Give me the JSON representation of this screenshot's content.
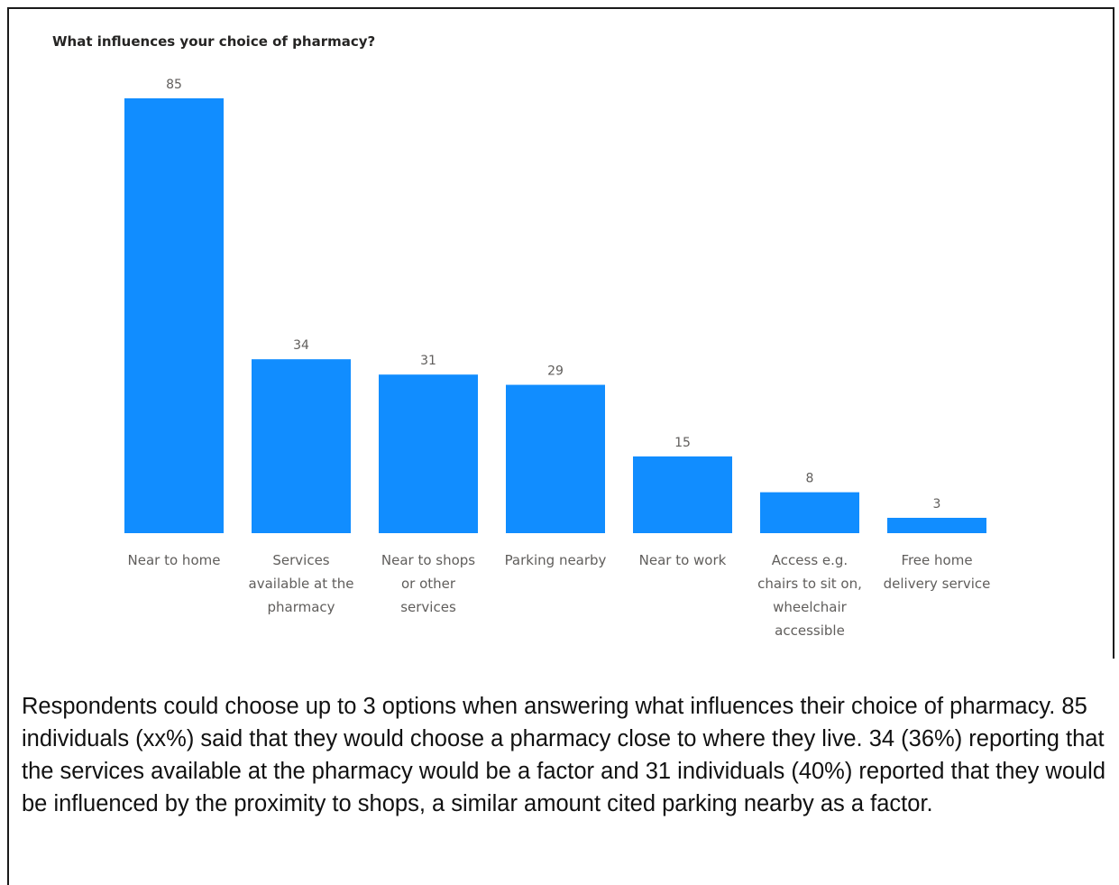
{
  "chart_data": {
    "type": "bar",
    "title": "What influences your choice of pharmacy?",
    "categories": [
      [
        "Near to home"
      ],
      [
        "Services",
        "available at the",
        "pharmacy"
      ],
      [
        "Near to shops",
        "or other",
        "services"
      ],
      [
        "Parking nearby"
      ],
      [
        "Near to work"
      ],
      [
        "Access e.g.",
        "chairs to sit on,",
        "wheelchair",
        "accessible"
      ],
      [
        "Free home",
        "delivery service"
      ]
    ],
    "values": [
      85,
      34,
      31,
      29,
      15,
      8,
      3
    ],
    "data_labels": true,
    "ylim": [
      0,
      85
    ],
    "grid": false,
    "colors": {
      "bar": "#118dff"
    }
  },
  "caption": "Respondents could choose up to 3 options when answering what influences their choice of pharmacy. 85 individuals (xx%) said that they would choose a pharmacy close to where they live. 34 (36%) reporting that the services available at the pharmacy would be a factor and 31 individuals (40%) reported that they would be influenced by the proximity to shops, a similar amount cited parking nearby as a factor."
}
